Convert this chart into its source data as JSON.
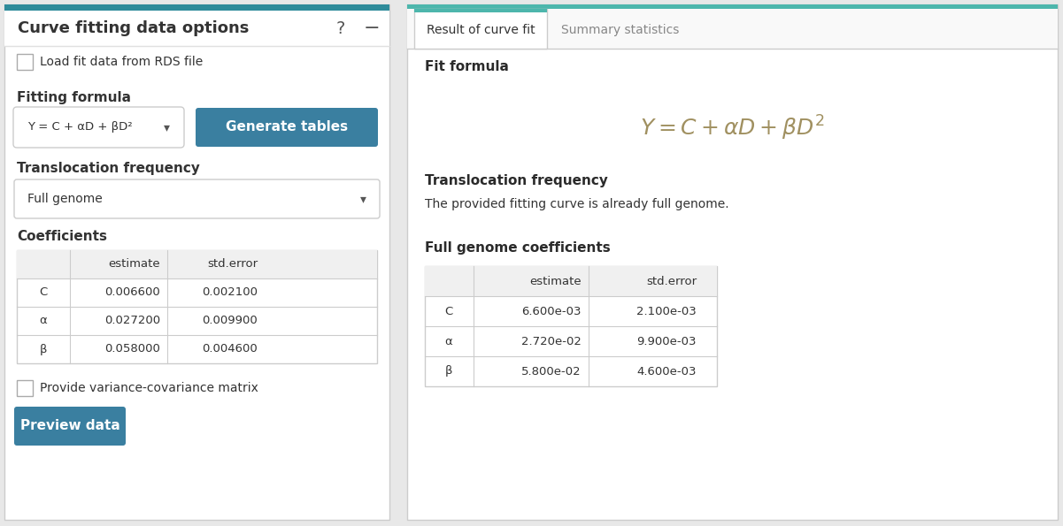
{
  "fig_width": 12.01,
  "fig_height": 5.95,
  "dpi": 100,
  "bg_color": "#e8e8e8",
  "panel_bg": "#ffffff",
  "left_panel": {
    "title": "Curve fitting data options",
    "title_fontsize": 12.5,
    "title_color": "#333333",
    "header_bar_color": "#2e8b9a",
    "question_mark": "?",
    "minus_sign": "−",
    "checkbox1_label": "Load fit data from RDS file",
    "section1_label": "Fitting formula",
    "dropdown1_text": "Y = C + αD + βD²",
    "button_text": "Generate tables",
    "button_color": "#3a7fa0",
    "button_text_color": "#ffffff",
    "section2_label": "Translocation frequency",
    "dropdown2_text": "Full genome",
    "section3_label": "Coefficients",
    "coeff_headers": [
      "",
      "estimate",
      "std.error"
    ],
    "coeff_rows": [
      [
        "C",
        "0.006600",
        "0.002100"
      ],
      [
        "α",
        "0.027200",
        "0.009900"
      ],
      [
        "β",
        "0.058000",
        "0.004600"
      ]
    ],
    "checkbox2_label": "Provide variance-covariance matrix",
    "preview_button_text": "Preview data",
    "preview_button_color": "#3a7fa0",
    "preview_button_text_color": "#ffffff"
  },
  "right_panel": {
    "tab_bar_color": "#4db6ac",
    "tab1_text": "Result of curve fit",
    "tab2_text": "Summary statistics",
    "section1_label": "Fit formula",
    "formula_latex": "$Y = C + \\alpha D + \\beta D^{2}$",
    "formula_color": "#a09060",
    "section2_label": "Translocation frequency",
    "transloc_text": "The provided fitting curve is already full genome.",
    "section3_label": "Full genome coefficients",
    "coeff_headers": [
      "",
      "estimate",
      "std.error"
    ],
    "coeff_rows": [
      [
        "C",
        "6.600e-03",
        "2.100e-03"
      ],
      [
        "α",
        "2.720e-02",
        "9.900e-03"
      ],
      [
        "β",
        "5.800e-02",
        "4.600e-03"
      ]
    ]
  },
  "text_color": "#333333",
  "label_color": "#2a2a2a",
  "table_header_bg": "#f0f0f0",
  "table_border_color": "#cccccc",
  "table_row_bg": "#ffffff",
  "section_bold_color": "#2a2a2a"
}
